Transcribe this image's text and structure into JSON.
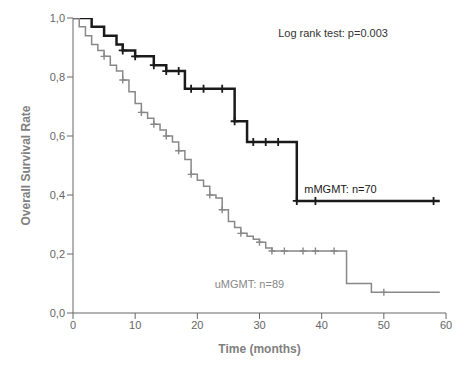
{
  "chart_data": {
    "type": "step",
    "xlabel": "Time (months)",
    "ylabel": "Overall Survival Rate",
    "annotation": "Log rank test: p=0.003",
    "xlim": [
      0,
      60
    ],
    "ylim": [
      0.0,
      1.0
    ],
    "xticks": [
      0,
      10,
      20,
      30,
      40,
      50,
      60
    ],
    "yticks": [
      {
        "value": 0.0,
        "label": "0,0"
      },
      {
        "value": 0.2,
        "label": "0,2"
      },
      {
        "value": 0.4,
        "label": "0,4"
      },
      {
        "value": 0.6,
        "label": "0,6"
      },
      {
        "value": 0.8,
        "label": "0,8"
      },
      {
        "value": 1.0,
        "label": "1,0"
      }
    ],
    "grid": false,
    "series": [
      {
        "name": "mMGMT: n=70",
        "color": "#1a1a1a",
        "x": [
          0,
          1,
          2,
          3,
          4,
          5,
          6,
          7,
          8,
          9,
          10,
          11,
          12,
          13,
          14,
          15,
          16,
          17,
          18,
          19,
          20,
          21,
          22,
          23,
          24,
          25,
          26,
          27,
          28,
          29,
          30,
          31,
          32,
          33,
          34,
          35,
          36,
          37,
          38,
          39,
          40,
          41,
          42,
          43,
          44,
          45,
          46,
          47,
          48,
          49,
          50,
          51,
          52,
          53,
          54,
          55,
          56,
          57,
          58,
          59
        ],
        "values": [
          1.0,
          1.0,
          1.0,
          0.97,
          0.97,
          0.94,
          0.94,
          0.91,
          0.89,
          0.89,
          0.87,
          0.87,
          0.87,
          0.84,
          0.84,
          0.82,
          0.82,
          0.82,
          0.76,
          0.76,
          0.76,
          0.76,
          0.76,
          0.76,
          0.76,
          0.76,
          0.65,
          0.65,
          0.58,
          0.58,
          0.58,
          0.58,
          0.58,
          0.58,
          0.58,
          0.58,
          0.38,
          0.38,
          0.38,
          0.38,
          0.38,
          0.38,
          0.38,
          0.38,
          0.38,
          0.38,
          0.38,
          0.38,
          0.38,
          0.38,
          0.38,
          0.38,
          0.38,
          0.38,
          0.38,
          0.38,
          0.38,
          0.38,
          0.38,
          0.38
        ],
        "marker": "+",
        "censored": {
          "x": [
            8,
            10,
            13,
            15,
            17,
            19,
            21,
            24,
            26,
            29,
            31,
            33,
            36,
            39,
            58
          ],
          "values": [
            0.89,
            0.87,
            0.84,
            0.82,
            0.82,
            0.76,
            0.76,
            0.76,
            0.65,
            0.58,
            0.58,
            0.58,
            0.38,
            0.38,
            0.38
          ]
        }
      },
      {
        "name": "uMGMT: n=89",
        "color": "#888888",
        "x": [
          0,
          1,
          2,
          3,
          4,
          5,
          6,
          7,
          8,
          9,
          10,
          11,
          12,
          13,
          14,
          15,
          16,
          17,
          18,
          19,
          20,
          21,
          22,
          23,
          24,
          25,
          26,
          27,
          28,
          29,
          30,
          31,
          32,
          33,
          34,
          35,
          36,
          37,
          38,
          39,
          40,
          41,
          42,
          43,
          44,
          45,
          46,
          47,
          48,
          49,
          50,
          51,
          52,
          53,
          54,
          55,
          56,
          57,
          58,
          59
        ],
        "values": [
          1.0,
          0.97,
          0.94,
          0.91,
          0.89,
          0.87,
          0.84,
          0.82,
          0.79,
          0.75,
          0.71,
          0.68,
          0.66,
          0.64,
          0.62,
          0.6,
          0.58,
          0.55,
          0.52,
          0.47,
          0.45,
          0.43,
          0.4,
          0.39,
          0.35,
          0.31,
          0.29,
          0.27,
          0.26,
          0.25,
          0.24,
          0.22,
          0.21,
          0.21,
          0.21,
          0.21,
          0.21,
          0.21,
          0.21,
          0.21,
          0.21,
          0.21,
          0.21,
          0.21,
          0.1,
          0.1,
          0.1,
          0.1,
          0.07,
          0.07,
          0.07,
          0.07,
          0.07,
          0.07,
          0.07,
          0.07,
          0.07,
          0.07,
          0.07,
          0.07
        ],
        "marker": "+",
        "censored": {
          "x": [
            5,
            8,
            11,
            13,
            15,
            17,
            19,
            22,
            24,
            27,
            30,
            32,
            34,
            37,
            39,
            42,
            50
          ],
          "values": [
            0.87,
            0.79,
            0.68,
            0.64,
            0.6,
            0.55,
            0.47,
            0.4,
            0.35,
            0.27,
            0.24,
            0.21,
            0.21,
            0.21,
            0.21,
            0.21,
            0.07
          ]
        }
      }
    ]
  }
}
